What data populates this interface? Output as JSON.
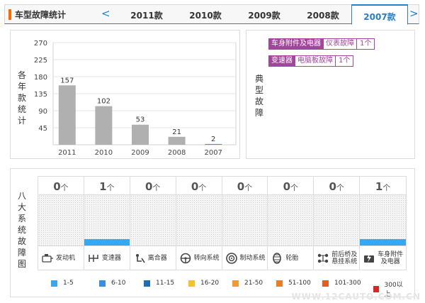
{
  "topbar": {
    "title": "车型故障统计",
    "prev": "<",
    "next": ">",
    "years": [
      "2011款",
      "2010款",
      "2009款",
      "2008款",
      "2007款"
    ],
    "active_index": 4
  },
  "stats": {
    "side_label": "各年款统计"
  },
  "chart_data": {
    "type": "bar",
    "categories": [
      "2011",
      "2010",
      "2009",
      "2008",
      "2007"
    ],
    "values": [
      157,
      102,
      53,
      21,
      2
    ],
    "ylim": [
      0,
      270
    ],
    "yticks": [
      45,
      90,
      135,
      180,
      225,
      270
    ],
    "grid": true,
    "bar_color": "#b0b0b0",
    "highlight_color": "#2a9fd6",
    "highlight_index": 4
  },
  "typical": {
    "side_label": "典型故障",
    "tags": [
      {
        "part": "车身附件及电器",
        "fault": "仪表故障",
        "count": "1个"
      },
      {
        "part": "变速器",
        "fault": "电脑板故障",
        "count": "1个"
      }
    ]
  },
  "systems": {
    "side_label": "八大系统故障图",
    "unit": "个",
    "bar_color": "#37a8ef",
    "items": [
      {
        "name": "发动机",
        "count": 0,
        "icon": "engine-icon"
      },
      {
        "name": "变速器",
        "count": 1,
        "icon": "gearbox-icon"
      },
      {
        "name": "离合器",
        "count": 0,
        "icon": "clutch-icon"
      },
      {
        "name": "转向系统",
        "count": 0,
        "icon": "steering-wheel-icon"
      },
      {
        "name": "制动系统",
        "count": 0,
        "icon": "brake-disc-icon"
      },
      {
        "name": "轮胎",
        "count": 0,
        "icon": "tire-icon"
      },
      {
        "name": "前后桥及悬挂系统",
        "line1": "前后桥及",
        "line2": "悬挂系统",
        "count": 0,
        "icon": "axle-suspension-icon"
      },
      {
        "name": "车身附件及电器",
        "line1": "车身附件",
        "line2": "及电器",
        "count": 1,
        "icon": "body-electrical-icon"
      }
    ]
  },
  "legend": [
    {
      "label": "1-5",
      "color": "#37a8ef"
    },
    {
      "label": "6-10",
      "color": "#3b8fe0"
    },
    {
      "label": "11-15",
      "color": "#1e6fb8"
    },
    {
      "label": "16-20",
      "color": "#f5c518"
    },
    {
      "label": "21-50",
      "color": "#f39a2b"
    },
    {
      "label": "51-100",
      "color": "#f07c1e"
    },
    {
      "label": "101-300",
      "color": "#ea5a1c"
    },
    {
      "label": "300以上",
      "color": "#e02424"
    }
  ],
  "watermark": "WWW.12CAUTO.COM.CN"
}
